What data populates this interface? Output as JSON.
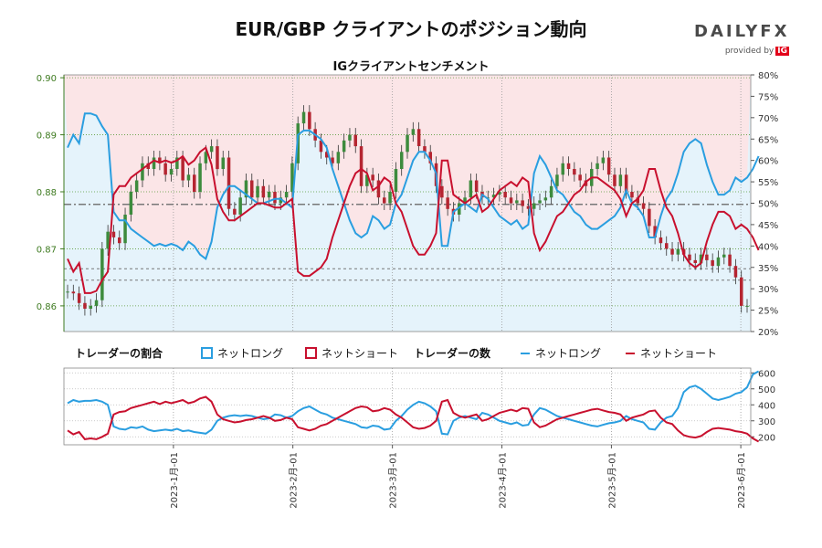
{
  "header": {
    "title": "EUR/GBP クライアントのポジション動向",
    "subtitle": "IGクライアントセンチメント",
    "logo_word": "DAILY",
    "logo_fx": "FX",
    "logo_by": "provided by",
    "logo_ig": "IG"
  },
  "legend": {
    "ratio_title": "トレーダーの割合",
    "ratio_long": "ネットロング",
    "ratio_short": "ネットショート",
    "count_title": "トレーダーの数",
    "count_long": "ネットロング",
    "count_short": "ネットショート"
  },
  "colors": {
    "long": "#2a9ee0",
    "short": "#c8102e",
    "long_fill": "#e5f3fb",
    "short_fill": "#fbe5e7",
    "candle_up": "#3d8b3d",
    "candle_down": "#b52531",
    "price_axis": "#3d7a1f"
  },
  "chart_data": [
    {
      "type": "candlestick",
      "title": "EUR/GBP クライアントのポジション動向",
      "subtitle": "IGクライアントセンチメント",
      "x_ticks": [
        "2023-1月-01",
        "2023-2月-01",
        "2023-3月-01",
        "2023-4月-01",
        "2023-5月-01",
        "2023-6月-01"
      ],
      "y_left_ticks": [
        "0.86",
        "0.87",
        "0.88",
        "0.89",
        "0.90"
      ],
      "y_left_range": [
        0.8555,
        0.9005
      ],
      "y_right_ticks": [
        "20%",
        "25%",
        "30%",
        "35%",
        "40%",
        "45%",
        "50%",
        "55%",
        "60%",
        "65%",
        "70%",
        "75%",
        "80%"
      ],
      "y_right_range": [
        20,
        80
      ],
      "grid": true,
      "reference_lines": [
        0.8778,
        0.8665,
        0.8645
      ],
      "price_close": [
        0.8625,
        0.8622,
        0.8605,
        0.8595,
        0.86,
        0.861,
        0.87,
        0.873,
        0.872,
        0.871,
        0.876,
        0.88,
        0.882,
        0.885,
        0.884,
        0.886,
        0.885,
        0.883,
        0.884,
        0.886,
        0.882,
        0.883,
        0.88,
        0.885,
        0.887,
        0.888,
        0.884,
        0.886,
        0.877,
        0.876,
        0.879,
        0.882,
        0.879,
        0.881,
        0.879,
        0.88,
        0.878,
        0.879,
        0.88,
        0.885,
        0.892,
        0.894,
        0.891,
        0.889,
        0.887,
        0.886,
        0.885,
        0.887,
        0.889,
        0.89,
        0.888,
        0.881,
        0.883,
        0.882,
        0.879,
        0.878,
        0.88,
        0.884,
        0.887,
        0.89,
        0.891,
        0.888,
        0.887,
        0.885,
        0.881,
        0.879,
        0.877,
        0.876,
        0.878,
        0.879,
        0.882,
        0.88,
        0.879,
        0.879,
        0.8795,
        0.88,
        0.879,
        0.878,
        0.8785,
        0.8775,
        0.877,
        0.878,
        0.8785,
        0.879,
        0.881,
        0.883,
        0.885,
        0.884,
        0.883,
        0.882,
        0.881,
        0.884,
        0.885,
        0.886,
        0.883,
        0.881,
        0.883,
        0.88,
        0.879,
        0.878,
        0.877,
        0.874,
        0.872,
        0.871,
        0.87,
        0.869,
        0.87,
        0.869,
        0.868,
        0.8675,
        0.869,
        0.868,
        0.867,
        0.8685,
        0.869,
        0.867,
        0.865,
        0.86,
        0.86
      ],
      "series": [
        {
          "name": "ネットロング",
          "values": [
            63,
            66,
            64,
            71,
            71,
            70.5,
            68,
            66,
            48,
            46,
            46,
            44,
            43,
            42,
            41,
            40,
            40.5,
            40,
            40.5,
            40,
            39,
            41,
            40,
            38,
            37,
            41,
            49,
            52,
            54,
            54,
            53,
            52,
            51,
            50,
            50,
            50.5,
            51,
            51,
            50,
            49,
            66,
            67,
            67,
            66,
            65,
            63,
            58,
            54,
            50,
            46,
            43,
            42,
            43,
            47,
            46,
            44,
            45,
            50,
            52,
            56,
            60,
            62,
            62,
            60,
            57,
            40,
            40,
            48,
            49,
            50,
            49,
            48,
            52,
            51,
            49,
            47,
            46,
            45,
            46,
            44,
            45,
            57,
            61,
            59,
            56,
            53,
            52,
            50,
            48,
            47,
            45,
            44,
            44,
            45,
            46,
            47,
            49,
            53,
            50,
            49,
            47,
            42,
            42,
            47,
            51,
            53,
            57,
            62,
            64,
            65,
            64,
            59,
            55,
            52,
            52,
            53,
            56,
            55,
            56,
            58,
            61
          ],
          "axis": "percent"
        },
        {
          "name": "ネットショート",
          "values": [
            37,
            34,
            36,
            29,
            29,
            29.5,
            32,
            34,
            52,
            54,
            54,
            56,
            57,
            58,
            59,
            60,
            59.5,
            60,
            59.5,
            60,
            61,
            59,
            60,
            62,
            63,
            59,
            51,
            48,
            46,
            46,
            47,
            48,
            49,
            50,
            50,
            49.5,
            49,
            49,
            50,
            51,
            34,
            33,
            33,
            34,
            35,
            37,
            42,
            46,
            50,
            54,
            57,
            58,
            57,
            53,
            54,
            56,
            55,
            50,
            48,
            44,
            40,
            38,
            38,
            40,
            43,
            60,
            60,
            52,
            51,
            50,
            51,
            52,
            48,
            49,
            51,
            53,
            54,
            55,
            54,
            56,
            55,
            43,
            39,
            41,
            44,
            47,
            48,
            50,
            52,
            53,
            55,
            56,
            56,
            55,
            54,
            53,
            51,
            47,
            50,
            51,
            53,
            58,
            58,
            53,
            49,
            47,
            43,
            38,
            36,
            35,
            36,
            41,
            45,
            48,
            48,
            47,
            44,
            45,
            44,
            42,
            39
          ],
          "axis": "percent"
        }
      ]
    },
    {
      "type": "line",
      "y_ticks": [
        "200",
        "300",
        "400",
        "500",
        "600"
      ],
      "y_range": [
        150,
        630
      ],
      "grid": true,
      "series": [
        {
          "name": "ネットロング",
          "values": [
            410,
            430,
            420,
            425,
            425,
            430,
            420,
            400,
            265,
            250,
            245,
            260,
            255,
            265,
            245,
            235,
            240,
            245,
            240,
            250,
            235,
            240,
            230,
            225,
            220,
            245,
            300,
            320,
            330,
            335,
            330,
            335,
            330,
            320,
            310,
            315,
            340,
            335,
            320,
            330,
            360,
            380,
            390,
            370,
            350,
            340,
            320,
            310,
            300,
            290,
            280,
            260,
            255,
            270,
            265,
            245,
            250,
            300,
            330,
            370,
            400,
            420,
            410,
            390,
            360,
            220,
            215,
            300,
            320,
            330,
            320,
            310,
            350,
            340,
            320,
            300,
            290,
            280,
            290,
            270,
            275,
            340,
            380,
            370,
            350,
            330,
            320,
            310,
            300,
            290,
            280,
            270,
            265,
            275,
            285,
            290,
            300,
            330,
            310,
            300,
            290,
            250,
            245,
            290,
            320,
            330,
            380,
            480,
            510,
            520,
            500,
            470,
            440,
            430,
            440,
            450,
            470,
            480,
            510,
            590,
            610
          ],
          "axis": "count"
        },
        {
          "name": "ネットショート",
          "values": [
            240,
            215,
            230,
            185,
            190,
            185,
            200,
            220,
            340,
            355,
            360,
            380,
            390,
            400,
            410,
            420,
            405,
            420,
            410,
            420,
            430,
            410,
            420,
            440,
            450,
            420,
            340,
            310,
            300,
            290,
            295,
            305,
            310,
            320,
            330,
            320,
            300,
            305,
            320,
            310,
            260,
            250,
            240,
            250,
            270,
            280,
            300,
            320,
            340,
            360,
            380,
            390,
            385,
            360,
            365,
            380,
            370,
            340,
            320,
            290,
            260,
            250,
            255,
            270,
            300,
            420,
            430,
            350,
            330,
            320,
            330,
            340,
            300,
            310,
            330,
            350,
            360,
            370,
            360,
            380,
            375,
            290,
            260,
            270,
            290,
            310,
            320,
            330,
            340,
            350,
            360,
            370,
            375,
            365,
            355,
            350,
            340,
            300,
            320,
            330,
            340,
            360,
            365,
            320,
            290,
            280,
            240,
            210,
            200,
            195,
            205,
            230,
            250,
            255,
            250,
            245,
            235,
            230,
            220,
            190,
            170
          ],
          "axis": "count"
        }
      ]
    }
  ]
}
